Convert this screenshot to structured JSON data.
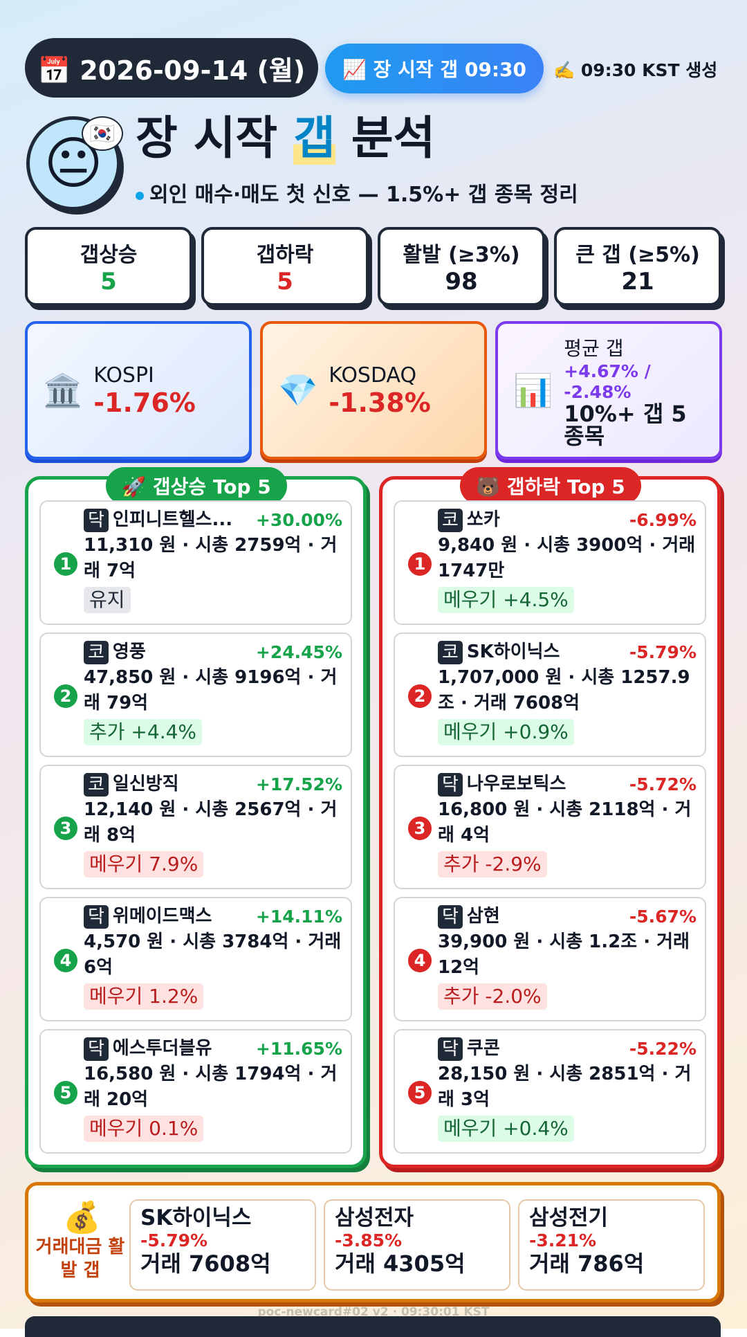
{
  "header": {
    "date": "📅 2026-09-14 (월)",
    "badge": "📈 장 시작 갭 09:30",
    "generated": "✍️ 09:30 KST 생성"
  },
  "title": {
    "avatar": "😐",
    "flag": "🇰🇷",
    "parts": [
      "장 시작 ",
      "갭",
      " 분석"
    ],
    "subtitle": "외인 매수·매도 첫 신호 — 1.5%+ 갭 종목 정리"
  },
  "stats": [
    {
      "label": "갭상승",
      "value": "5",
      "color": "#16a34a"
    },
    {
      "label": "갭하락",
      "value": "5",
      "color": "#dc2626"
    },
    {
      "label": "활발 (≥3%)",
      "value": "98",
      "color": "#111827"
    },
    {
      "label": "큰 갭 (≥5%)",
      "value": "21",
      "color": "#111827"
    }
  ],
  "indices": [
    {
      "icon": "🏛️",
      "name": "KOSPI",
      "change": "-1.76%"
    },
    {
      "icon": "💎",
      "name": "KOSDAQ",
      "change": "-1.38%"
    }
  ],
  "avg_gap": {
    "icon": "📊",
    "label": "평균 갭",
    "value": "+4.67% / -2.48%",
    "note": "10%+ 갭 5종목"
  },
  "gainers": {
    "title": "🚀 갭상승 Top 5",
    "items": [
      {
        "rank": "1",
        "market": "닥",
        "name": "인피니트헬스...",
        "change": "+30.00%",
        "detail": "11,310 원 · 시총 2759억 · 거래 7억",
        "tag": "유지",
        "tone": "gray"
      },
      {
        "rank": "2",
        "market": "코",
        "name": "영풍",
        "change": "+24.45%",
        "detail": "47,850 원 · 시총 9196억 · 거래 79억",
        "tag": "추가 +4.4%",
        "tone": "green"
      },
      {
        "rank": "3",
        "market": "코",
        "name": "일신방직",
        "change": "+17.52%",
        "detail": "12,140 원 · 시총 2567억 · 거래 8억",
        "tag": "메우기 7.9%",
        "tone": "red"
      },
      {
        "rank": "4",
        "market": "닥",
        "name": "위메이드맥스",
        "change": "+14.11%",
        "detail": "4,570 원 · 시총 3784억 · 거래 6억",
        "tag": "메우기 1.2%",
        "tone": "red"
      },
      {
        "rank": "5",
        "market": "닥",
        "name": "에스투더블유",
        "change": "+11.65%",
        "detail": "16,580 원 · 시총 1794억 · 거래 20억",
        "tag": "메우기 0.1%",
        "tone": "red"
      }
    ]
  },
  "losers": {
    "title": "🐻 갭하락 Top 5",
    "items": [
      {
        "rank": "1",
        "market": "코",
        "name": "쏘카",
        "change": "-6.99%",
        "detail": "9,840 원 · 시총 3900억 · 거래 1747만",
        "tag": "메우기 +4.5%",
        "tone": "green"
      },
      {
        "rank": "2",
        "market": "코",
        "name": "SK하이닉스",
        "change": "-5.79%",
        "detail": "1,707,000 원 · 시총 1257.9조 · 거래 7608억",
        "tag": "메우기 +0.9%",
        "tone": "green"
      },
      {
        "rank": "3",
        "market": "닥",
        "name": "나우로보틱스",
        "change": "-5.72%",
        "detail": "16,800 원 · 시총 2118억 · 거래 4억",
        "tag": "추가 -2.9%",
        "tone": "red"
      },
      {
        "rank": "4",
        "market": "닥",
        "name": "삼현",
        "change": "-5.67%",
        "detail": "39,900 원 · 시총 1.2조 · 거래 12억",
        "tag": "추가 -2.0%",
        "tone": "red"
      },
      {
        "rank": "5",
        "market": "닥",
        "name": "쿠콘",
        "change": "-5.22%",
        "detail": "28,150 원 · 시총 2851억 · 거래 3억",
        "tag": "메우기 +0.4%",
        "tone": "green"
      }
    ]
  },
  "volume": {
    "icon": "💰",
    "title": "거래대금 활발 갭",
    "items": [
      {
        "name": "SK하이닉스",
        "change": "-5.79%",
        "volume": "거래 7608억"
      },
      {
        "name": "삼성전자",
        "change": "-3.85%",
        "volume": "거래 4305억"
      },
      {
        "name": "삼성전기",
        "change": "-3.21%",
        "volume": "거래 786억"
      }
    ]
  },
  "footer": "poc-newcard#02 v2 · 09:30:01 KST"
}
